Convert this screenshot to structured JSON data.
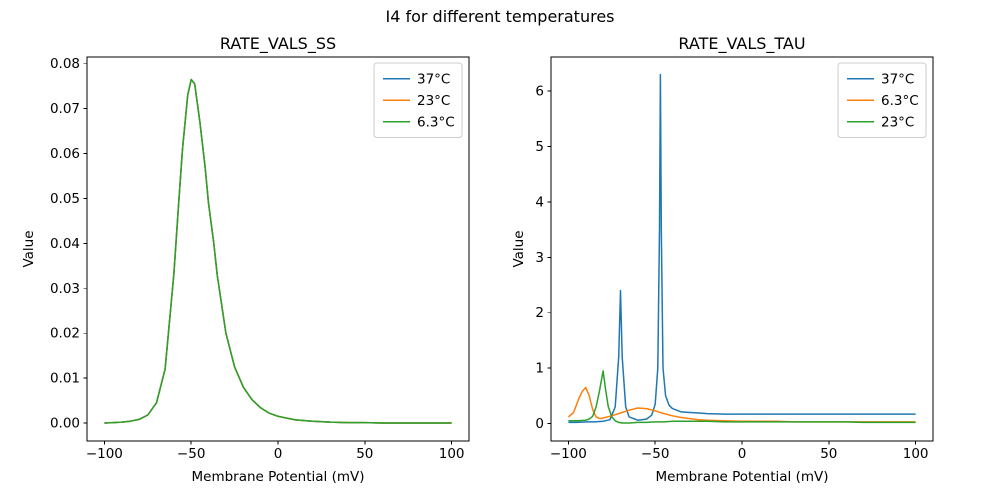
{
  "figure": {
    "suptitle": "I4 for different temperatures",
    "background": "#ffffff"
  },
  "chart_data": [
    {
      "type": "line",
      "title": "RATE_VALS_SS",
      "xlabel": "Membrane Potential (mV)",
      "ylabel": "Value",
      "xlim": [
        -110,
        110
      ],
      "ylim": [
        -0.004,
        0.0815
      ],
      "xticks": [
        -100,
        -50,
        0,
        50,
        100
      ],
      "xtick_labels": [
        "−100",
        "−50",
        "0",
        "50",
        "100"
      ],
      "yticks": [
        0.0,
        0.01,
        0.02,
        0.03,
        0.04,
        0.05,
        0.06,
        0.07,
        0.08
      ],
      "ytick_labels": [
        "0.00",
        "0.01",
        "0.02",
        "0.03",
        "0.04",
        "0.05",
        "0.06",
        "0.07",
        "0.08"
      ],
      "legend_position": "upper right",
      "grid": false,
      "note": "all three temperature curves overlap exactly; green drawn last is visible",
      "x": [
        -100,
        -95,
        -90,
        -85,
        -80,
        -75,
        -70,
        -65,
        -60,
        -57,
        -55,
        -52,
        -50,
        -48,
        -45,
        -42,
        -40,
        -37,
        -35,
        -30,
        -25,
        -20,
        -15,
        -10,
        -5,
        0,
        10,
        20,
        30,
        40,
        50,
        60,
        70,
        80,
        90,
        100
      ],
      "series": [
        {
          "name": "37°C",
          "color": "#1f77b4",
          "y": [
            0.0,
            0.0001,
            0.0002,
            0.0004,
            0.0008,
            0.0018,
            0.0045,
            0.012,
            0.033,
            0.05,
            0.061,
            0.073,
            0.0765,
            0.0755,
            0.067,
            0.057,
            0.049,
            0.04,
            0.033,
            0.02,
            0.0125,
            0.008,
            0.0052,
            0.0034,
            0.0022,
            0.0015,
            0.0007,
            0.0004,
            0.0002,
            0.0001,
            0.0001,
            0.0,
            0.0,
            0.0,
            0.0,
            0.0
          ]
        },
        {
          "name": "23°C",
          "color": "#ff7f0e",
          "y": [
            0.0,
            0.0001,
            0.0002,
            0.0004,
            0.0008,
            0.0018,
            0.0045,
            0.012,
            0.033,
            0.05,
            0.061,
            0.073,
            0.0765,
            0.0755,
            0.067,
            0.057,
            0.049,
            0.04,
            0.033,
            0.02,
            0.0125,
            0.008,
            0.0052,
            0.0034,
            0.0022,
            0.0015,
            0.0007,
            0.0004,
            0.0002,
            0.0001,
            0.0001,
            0.0,
            0.0,
            0.0,
            0.0,
            0.0
          ]
        },
        {
          "name": "6.3°C",
          "color": "#2ca02c",
          "y": [
            0.0,
            0.0001,
            0.0002,
            0.0004,
            0.0008,
            0.0018,
            0.0045,
            0.012,
            0.033,
            0.05,
            0.061,
            0.073,
            0.0765,
            0.0755,
            0.067,
            0.057,
            0.049,
            0.04,
            0.033,
            0.02,
            0.0125,
            0.008,
            0.0052,
            0.0034,
            0.0022,
            0.0015,
            0.0007,
            0.0004,
            0.0002,
            0.0001,
            0.0001,
            0.0,
            0.0,
            0.0,
            0.0,
            0.0
          ]
        }
      ]
    },
    {
      "type": "line",
      "title": "RATE_VALS_TAU",
      "xlabel": "Membrane Potential (mV)",
      "ylabel": "Value",
      "xlim": [
        -110,
        110
      ],
      "ylim": [
        -0.315,
        6.615
      ],
      "xticks": [
        -100,
        -50,
        0,
        50,
        100
      ],
      "xtick_labels": [
        "−100",
        "−50",
        "0",
        "50",
        "100"
      ],
      "yticks": [
        0,
        1,
        2,
        3,
        4,
        5,
        6
      ],
      "ytick_labels": [
        "0",
        "1",
        "2",
        "3",
        "4",
        "5",
        "6"
      ],
      "legend_position": "upper right",
      "grid": false,
      "series": [
        {
          "name": "37°C",
          "color": "#1f77b4",
          "x": [
            -100,
            -95,
            -90,
            -85,
            -80,
            -76,
            -73,
            -71,
            -70,
            -69,
            -67,
            -65,
            -60,
            -55,
            -52,
            -50,
            -48.5,
            -47.5,
            -47,
            -46.5,
            -45.5,
            -44,
            -42,
            -40,
            -35,
            -30,
            -25,
            -20,
            -10,
            0,
            10,
            20,
            30,
            40,
            50,
            60,
            70,
            80,
            90,
            100
          ],
          "y": [
            0.02,
            0.02,
            0.03,
            0.03,
            0.04,
            0.07,
            0.3,
            1.2,
            2.4,
            1.2,
            0.3,
            0.12,
            0.06,
            0.08,
            0.15,
            0.35,
            1.0,
            3.5,
            6.3,
            3.5,
            1.0,
            0.5,
            0.33,
            0.27,
            0.21,
            0.2,
            0.19,
            0.18,
            0.17,
            0.17,
            0.17,
            0.17,
            0.17,
            0.17,
            0.17,
            0.17,
            0.17,
            0.17,
            0.17,
            0.17
          ]
        },
        {
          "name": "6.3°C",
          "color": "#ff7f0e",
          "x": [
            -100,
            -97,
            -94,
            -92,
            -90,
            -88,
            -86,
            -84,
            -82,
            -80,
            -75,
            -70,
            -65,
            -60,
            -55,
            -50,
            -45,
            -40,
            -35,
            -30,
            -25,
            -20,
            -10,
            0,
            10,
            20,
            30,
            40,
            50,
            60,
            70,
            80,
            90,
            100
          ],
          "y": [
            0.12,
            0.2,
            0.45,
            0.58,
            0.65,
            0.5,
            0.25,
            0.12,
            0.09,
            0.1,
            0.14,
            0.19,
            0.24,
            0.28,
            0.27,
            0.23,
            0.18,
            0.14,
            0.11,
            0.09,
            0.07,
            0.06,
            0.05,
            0.04,
            0.04,
            0.04,
            0.03,
            0.03,
            0.03,
            0.03,
            0.03,
            0.03,
            0.03,
            0.03
          ]
        },
        {
          "name": "23°C",
          "color": "#2ca02c",
          "x": [
            -100,
            -95,
            -90,
            -88,
            -86,
            -84,
            -82,
            -80,
            -78.5,
            -77,
            -75,
            -73,
            -71,
            -69,
            -65,
            -60,
            -55,
            -50,
            -45,
            -40,
            -35,
            -30,
            -20,
            -10,
            0,
            10,
            20,
            30,
            40,
            50,
            60,
            70,
            80,
            90,
            100
          ],
          "y": [
            0.05,
            0.05,
            0.06,
            0.08,
            0.13,
            0.3,
            0.6,
            0.95,
            0.6,
            0.3,
            0.12,
            0.05,
            0.02,
            0.01,
            0.01,
            0.02,
            0.02,
            0.03,
            0.03,
            0.04,
            0.04,
            0.04,
            0.04,
            0.03,
            0.03,
            0.03,
            0.03,
            0.03,
            0.03,
            0.03,
            0.03,
            0.02,
            0.02,
            0.02,
            0.02
          ]
        }
      ]
    }
  ],
  "style": {
    "axes_edge_color": "#000000",
    "legend_edge_color": "#cccccc",
    "legend_face_color": "#ffffff",
    "line_width": 1.5
  }
}
